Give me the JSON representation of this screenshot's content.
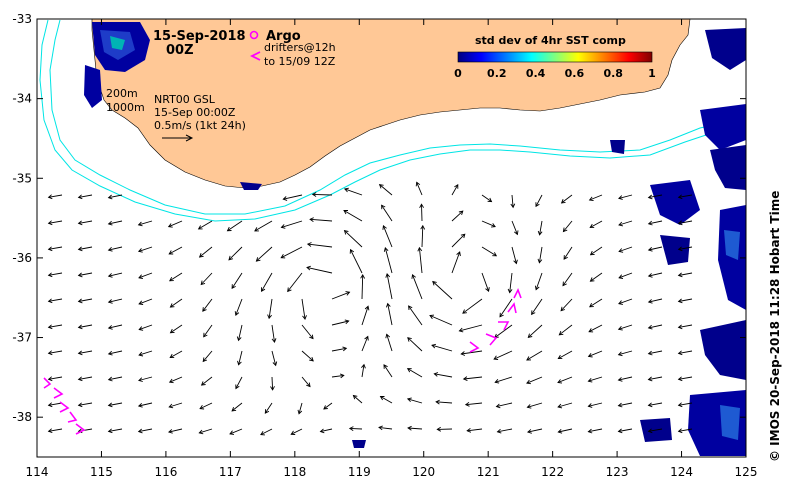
{
  "title": {
    "date": "15-Sep-2018",
    "time": "00Z"
  },
  "legend": {
    "argo_label": "Argo",
    "drifters_label_1": "drifters@12h",
    "drifters_label_2": "to 15/09 12Z",
    "argo_color": "#ff00ff",
    "drifter_color": "#ff00ff"
  },
  "contours": {
    "label_200": "200m",
    "label_1000": "1000m",
    "color": "#00e5e5"
  },
  "current_legend": {
    "line1": "NRT00 GSL",
    "line2": "15-Sep 00:00Z",
    "line3": "0.5m/s (1kt 24h)"
  },
  "colorbar": {
    "title": "std dev of 4hr SST comp",
    "ticks": [
      "0",
      "0.2",
      "0.4",
      "0.6",
      "0.8",
      "1"
    ],
    "colors": [
      "#00007f",
      "#0000ff",
      "#007fff",
      "#00ffff",
      "#7fff7f",
      "#ffff00",
      "#ff7f00",
      "#ff0000",
      "#7f0000"
    ]
  },
  "axes": {
    "x_ticks": [
      "114",
      "115",
      "116",
      "117",
      "118",
      "119",
      "120",
      "121",
      "122",
      "123",
      "124",
      "125"
    ],
    "y_ticks": [
      "-33",
      "-34",
      "-35",
      "-36",
      "-37",
      "-38"
    ],
    "xlim": [
      114,
      125
    ],
    "ylim": [
      -38.5,
      -33
    ]
  },
  "land_color": "#ffc896",
  "credit": "© IMOS 20-Sep-2018 11:28 Hobart Time"
}
